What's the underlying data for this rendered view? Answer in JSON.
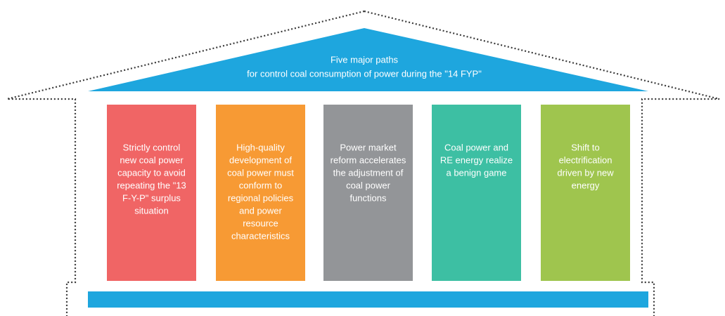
{
  "roof": {
    "title_lines": [
      "Five major paths",
      "for control coal consumption of power during the \"14 FYP\""
    ]
  },
  "pillars": [
    {
      "lines": [
        "Strictly control",
        "new coal power",
        "capacity to avoid",
        "repeating the \"13",
        "F-Y-P\" surplus",
        "situation"
      ]
    },
    {
      "lines": [
        "High-quality",
        "development of",
        "coal power must",
        "conform to",
        "regional policies",
        "and power",
        "resource",
        "characteristics"
      ]
    },
    {
      "lines": [
        "Power market",
        "reform accelerates",
        "the adjustment of",
        "coal power",
        "functions"
      ]
    },
    {
      "lines": [
        "Coal power and",
        "RE energy realize",
        "a benign game"
      ]
    },
    {
      "lines": [
        "Shift to",
        "electrification",
        "driven by new",
        "energy"
      ]
    }
  ]
}
